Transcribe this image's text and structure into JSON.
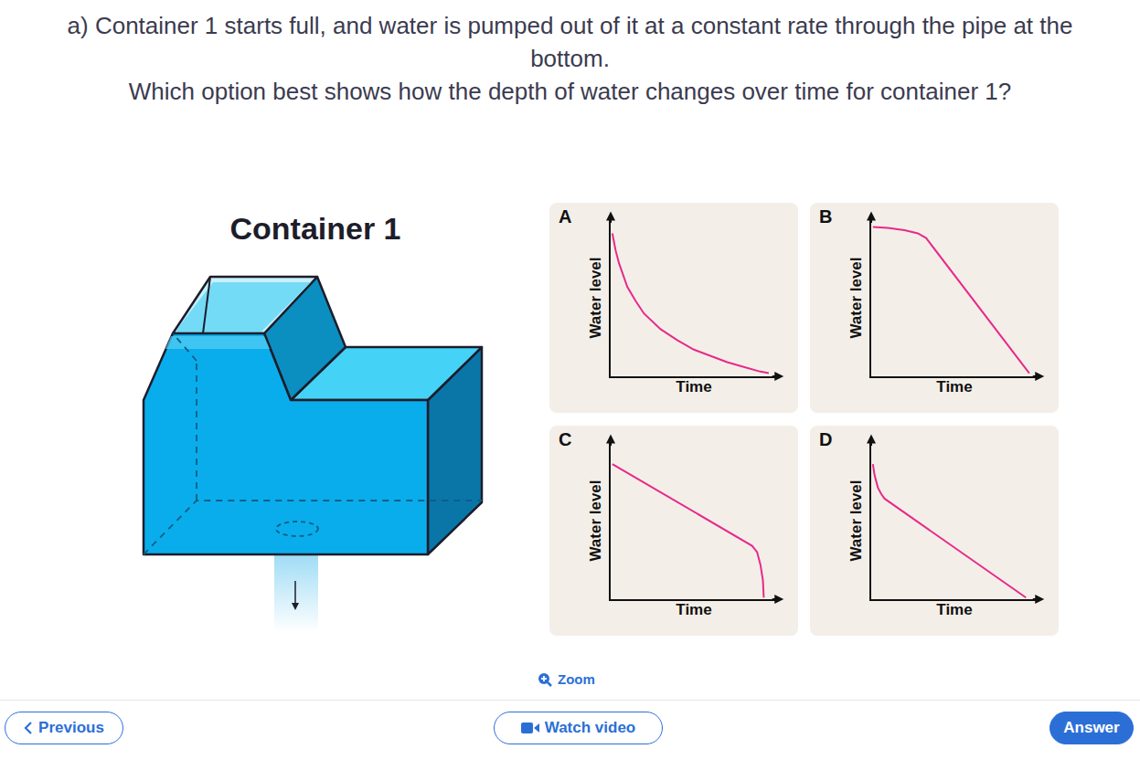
{
  "question": {
    "lines": [
      "a) Container 1 starts full, and water is pumped out of it at a constant rate through the pipe at the bottom.",
      "Which option best shows how the depth of water changes over time for container 1?"
    ]
  },
  "figure": {
    "title": "Container 1"
  },
  "chart_data": [
    {
      "title": "A",
      "type": "line",
      "xlabel": "Time",
      "ylabel": "Water level",
      "color": "#e8298b",
      "tick_labels": false,
      "xlim": [
        0,
        100
      ],
      "ylim": [
        0,
        100
      ],
      "x": [
        1,
        3,
        5,
        8,
        10,
        15,
        20,
        30,
        40,
        50,
        60,
        70,
        80,
        90,
        95
      ],
      "values": [
        91,
        80,
        72,
        63,
        57,
        48,
        40,
        30,
        23,
        17,
        13,
        9,
        6,
        3,
        2
      ]
    },
    {
      "title": "B",
      "type": "line",
      "xlabel": "Time",
      "ylabel": "Water level",
      "color": "#e8298b",
      "tick_labels": false,
      "xlim": [
        0,
        100
      ],
      "ylim": [
        0,
        100
      ],
      "x": [
        1,
        10,
        20,
        28,
        33,
        95
      ],
      "values": [
        95,
        94.5,
        93,
        91,
        88,
        2
      ]
    },
    {
      "title": "C",
      "type": "line",
      "xlabel": "Time",
      "ylabel": "Water level",
      "color": "#e8298b",
      "tick_labels": false,
      "xlim": [
        0,
        100
      ],
      "ylim": [
        0,
        100
      ],
      "x": [
        1,
        85,
        88,
        90,
        91.5,
        92
      ],
      "values": [
        86,
        34,
        30,
        22,
        12,
        1
      ]
    },
    {
      "title": "D",
      "type": "line",
      "xlabel": "Time",
      "ylabel": "Water level",
      "color": "#e8298b",
      "tick_labels": false,
      "xlim": [
        0,
        100
      ],
      "ylim": [
        0,
        100
      ],
      "x": [
        1,
        2,
        4,
        6,
        8,
        93
      ],
      "values": [
        86,
        79,
        71,
        67,
        64,
        1
      ]
    }
  ],
  "links": {
    "zoom": "Zoom"
  },
  "buttons": [
    "Previous",
    "Watch video",
    "Answer"
  ]
}
